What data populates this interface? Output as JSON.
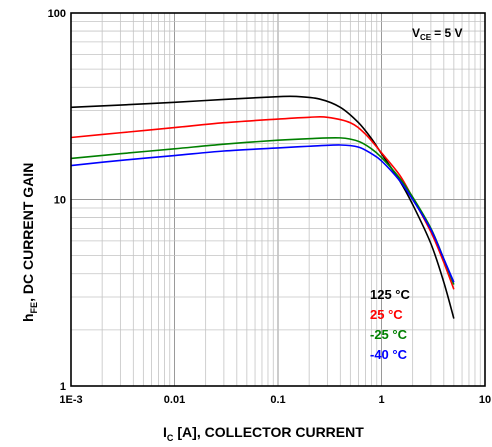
{
  "chart_data": {
    "type": "line",
    "title": "",
    "annotation": {
      "main": "V",
      "sub": "CE",
      "tail": "= 5 V"
    },
    "xlabel": {
      "main": "I",
      "sub": "C",
      "tail": "[A], COLLECTOR CURRENT"
    },
    "ylabel": {
      "main": "h",
      "sub": "FE",
      "tail": ", DC CURRENT GAIN"
    },
    "x_scale": "log",
    "y_scale": "log",
    "xlim": [
      0.001,
      10
    ],
    "ylim": [
      1,
      100
    ],
    "x_ticks": [
      {
        "value": 0.001,
        "label": "1E-3"
      },
      {
        "value": 0.01,
        "label": "0.01"
      },
      {
        "value": 0.1,
        "label": "0.1"
      },
      {
        "value": 1,
        "label": "1"
      },
      {
        "value": 10,
        "label": "10"
      }
    ],
    "y_ticks": [
      {
        "value": 1,
        "label": "1"
      },
      {
        "value": 10,
        "label": "10"
      },
      {
        "value": 100,
        "label": "100"
      }
    ],
    "grid": true,
    "legend_position": "bottom-right",
    "series": [
      {
        "name": "125 °C",
        "color": "#000000",
        "x": [
          0.001,
          0.003,
          0.01,
          0.03,
          0.1,
          0.15,
          0.25,
          0.4,
          0.6,
          0.8,
          1,
          1.5,
          2,
          3,
          4,
          5
        ],
        "y": [
          31.2,
          32.1,
          33.2,
          34.4,
          35.6,
          35.7,
          34.6,
          31.2,
          25.8,
          21.2,
          17.6,
          12.6,
          9.4,
          5.8,
          3.6,
          2.3
        ]
      },
      {
        "name": "25 °C",
        "color": "#ff0000",
        "x": [
          0.001,
          0.003,
          0.01,
          0.03,
          0.1,
          0.2,
          0.3,
          0.5,
          0.7,
          1,
          1.5,
          2,
          3,
          4,
          5
        ],
        "y": [
          21.5,
          22.8,
          24.3,
          25.8,
          27.0,
          27.6,
          27.6,
          25.8,
          22.4,
          17.8,
          13.5,
          10.2,
          6.7,
          4.6,
          3.3
        ]
      },
      {
        "name": "-25 °C",
        "color": "#008000",
        "x": [
          0.001,
          0.003,
          0.01,
          0.03,
          0.1,
          0.2,
          0.4,
          0.6,
          0.8,
          1,
          1.5,
          2,
          3,
          4,
          5
        ],
        "y": [
          16.6,
          17.6,
          18.7,
          19.8,
          20.8,
          21.2,
          21.4,
          20.5,
          18.7,
          16.8,
          13.0,
          10.3,
          7.0,
          4.8,
          3.5
        ]
      },
      {
        "name": "-40 °C",
        "color": "#0000ff",
        "x": [
          0.001,
          0.003,
          0.01,
          0.03,
          0.1,
          0.2,
          0.4,
          0.6,
          0.8,
          1,
          1.5,
          2,
          3,
          4,
          5
        ],
        "y": [
          15.2,
          16.2,
          17.2,
          18.2,
          18.9,
          19.3,
          19.6,
          19.1,
          17.6,
          16.1,
          12.6,
          10.0,
          6.9,
          4.8,
          3.6
        ]
      }
    ]
  }
}
